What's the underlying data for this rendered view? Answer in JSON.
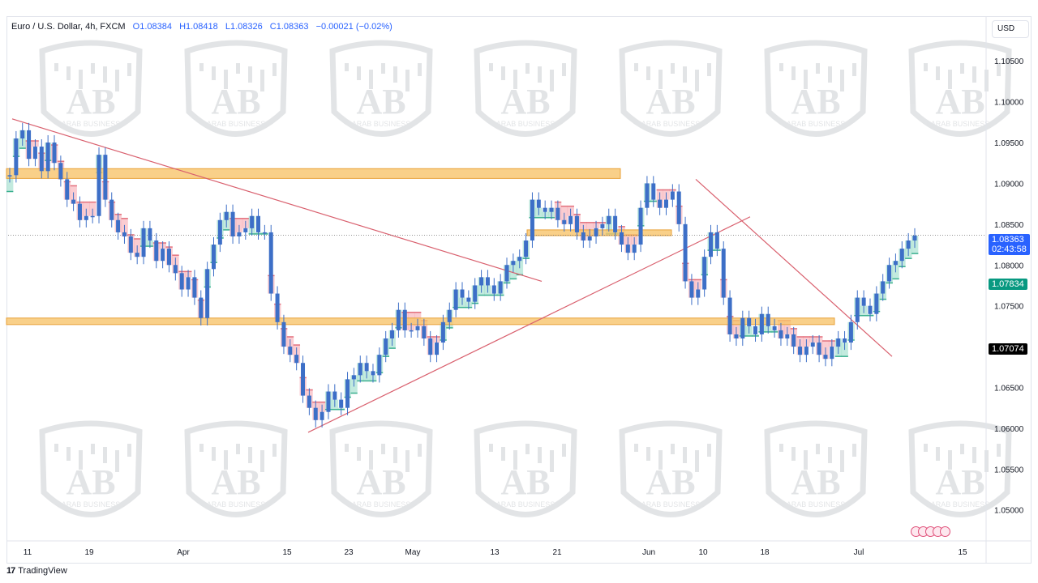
{
  "header": {
    "symbol": "Euro / U.S. Dollar, 4h, FXCM",
    "open": "O1.08384",
    "high": "H1.08418",
    "low": "L1.08326",
    "close": "C1.08363",
    "change": "−0.00021 (−0.02%)"
  },
  "currency_button": "USD",
  "price_tags": {
    "last_price": "1.08363",
    "countdown": "02:43:58",
    "trail_level": "1.07834",
    "marked_level": "1.07074"
  },
  "watermark_text": "ARAB BUSINESS",
  "branding": "TradingView",
  "colors": {
    "candle": "#3d6fc7",
    "zone_fill": "#f7c46c",
    "zone_border": "#e8a23a",
    "trendline": "#d9606e",
    "band_up": "#8fd9c3",
    "band_down": "#f6a3ab",
    "last_price_tag": "#2962ff",
    "trail_tag": "#089981"
  },
  "chart_data": {
    "type": "line",
    "title": "Euro / U.S. Dollar, 4h, FXCM",
    "x_ticks": [
      "11",
      "19",
      "Apr",
      "15",
      "23",
      "May",
      "13",
      "21",
      "Jun",
      "10",
      "18",
      "Jul",
      "15"
    ],
    "y_ticks": [
      "1.10500",
      "1.10000",
      "1.09500",
      "1.09000",
      "1.08500",
      "1.08000",
      "1.07500",
      "1.07000",
      "1.06500",
      "1.06000",
      "1.05500",
      "1.05000"
    ],
    "ylim": [
      1.0465,
      1.1075
    ],
    "series": [
      {
        "values": [
          1.091,
          1.0955,
          1.0965,
          1.093,
          1.0945,
          1.0915,
          1.095,
          1.0925,
          1.0905,
          1.088,
          1.0875,
          1.0855,
          1.086,
          1.086,
          1.0935,
          1.088,
          1.0855,
          1.084,
          1.0835,
          1.0815,
          1.081,
          1.0845,
          1.083,
          1.0805,
          1.082,
          1.08,
          1.079,
          1.077,
          1.0785,
          1.076,
          1.0735,
          1.0795,
          1.0825,
          1.0855,
          1.0865,
          1.0835,
          1.084,
          1.0845,
          1.086,
          1.084,
          1.084,
          1.0765,
          1.073,
          1.07,
          1.069,
          1.068,
          1.064,
          1.0625,
          1.061,
          1.062,
          1.0645,
          1.0635,
          1.0625,
          1.066,
          1.0665,
          1.068,
          1.067,
          1.0665,
          1.069,
          1.071,
          1.072,
          1.0745,
          1.072,
          1.072,
          1.0725,
          1.071,
          1.069,
          1.0705,
          1.073,
          1.0745,
          1.077,
          1.076,
          1.0755,
          1.0775,
          1.0785,
          1.0775,
          1.0765,
          1.078,
          1.08,
          1.0805,
          1.081,
          1.083,
          1.088,
          1.087,
          1.0865,
          1.087,
          1.0855,
          1.085,
          1.086,
          1.084,
          1.083,
          1.0835,
          1.0845,
          1.085,
          1.086,
          1.084,
          1.0825,
          1.0815,
          1.0825,
          1.087,
          1.09,
          1.088,
          1.087,
          1.088,
          1.089,
          1.085,
          1.078,
          1.076,
          1.077,
          1.081,
          1.084,
          1.082,
          1.076,
          1.0715,
          1.071,
          1.0735,
          1.0725,
          1.0715,
          1.074,
          1.0725,
          1.072,
          1.071,
          1.0715,
          1.07,
          1.069,
          1.07,
          1.0705,
          1.069,
          1.0685,
          1.07,
          1.071,
          1.0705,
          1.073,
          1.076,
          1.075,
          1.074,
          1.0765,
          1.078,
          1.08,
          1.0805,
          1.082,
          1.083,
          1.0836
        ]
      }
    ],
    "horizontal_zones": [
      {
        "from": 1.0906,
        "to": 1.0918
      },
      {
        "from": 1.0836,
        "to": 1.0843
      },
      {
        "from": 1.0727,
        "to": 1.0735
      }
    ],
    "horizontal_lines": [
      1.08363
    ],
    "grid": false,
    "legend": "top-left"
  }
}
